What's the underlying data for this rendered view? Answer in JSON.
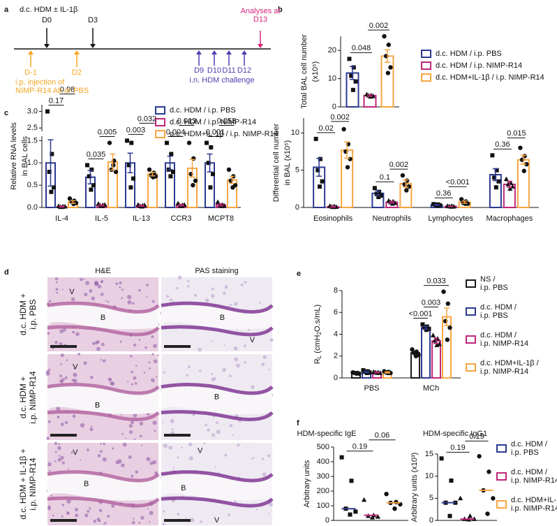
{
  "timeline": {
    "panel_label": "a",
    "sensitization": {
      "label": "d.c. HDM ± IL-1β",
      "days": [
        "D0",
        "D3"
      ],
      "color": "#111111"
    },
    "treatment": {
      "days": [
        "D-1",
        "D2"
      ],
      "label": "i.p. injection of\nNIMP-R14 Ab or PBS",
      "color": "#f5a623"
    },
    "challenge": {
      "days": [
        "D9",
        "D10",
        "D11",
        "D12"
      ],
      "label": "i.n. HDM challenge",
      "color": "#4b3fb0"
    },
    "analysis": {
      "label": "Analyses at\nD13",
      "color": "#d6237a"
    }
  },
  "histology": {
    "panel_label": "d",
    "columns": [
      "H&E",
      "PAS staining"
    ],
    "rows": [
      {
        "label": "d.c. HDM +\ni.p. PBS",
        "images": [
          [
            "V",
            "B"
          ],
          [
            "B",
            "V"
          ]
        ]
      },
      {
        "label": "d.c. HDM +\ni.p. NIMP-R14",
        "images": [
          [
            "V",
            "B"
          ],
          [
            "B"
          ]
        ]
      },
      {
        "label": "d.c. HDM + IL-1β +\ni.p. NIMP-R14",
        "images": [
          [
            "V",
            "B"
          ],
          [
            "V",
            "B",
            "V"
          ]
        ]
      }
    ]
  },
  "chart_data": [
    {
      "panel_label": "b",
      "type": "bar",
      "y_label": [
        "Total BAL cell number",
        "(x10⁵)"
      ],
      "categories": [
        null
      ],
      "ylim": [
        0,
        25
      ],
      "yticks": [
        0,
        10,
        20
      ],
      "series": [
        {
          "name": "d.c. HDM / i.p. PBS",
          "color": "#2b3990",
          "marker": "square",
          "values": [
            12
          ],
          "errors": [
            2.3
          ],
          "points": [
            [
              17,
              14,
              11,
              9,
              6
            ]
          ]
        },
        {
          "name": "d.c. HDM / i.p. NIMP-R14",
          "color": "#c0267a",
          "marker": "triangle",
          "values": [
            4
          ],
          "errors": [
            0.3
          ],
          "points": [
            [
              4.4,
              4.1,
              4,
              3.8,
              3.6
            ]
          ]
        },
        {
          "name": "d.c. HDM+IL-1β / i.p. NIMP-R14",
          "color": "#f7a541",
          "marker": "circle",
          "values": [
            18
          ],
          "errors": [
            2.2
          ],
          "points": [
            [
              25,
              22,
              18,
              14,
              12
            ]
          ]
        }
      ],
      "brackets": [
        {
          "category": 0,
          "from": 0,
          "to": 1,
          "label": "0.048"
        },
        {
          "category": 0,
          "from": 1,
          "to": 2,
          "label": "0.002"
        }
      ]
    },
    {
      "panel_label": "c",
      "type": "bar",
      "y_label": [
        "Relative RNA levels",
        "in BAL cells"
      ],
      "categories": [
        "IL-4",
        "IL-5",
        "IL-13",
        "CCR3",
        "MCPT8"
      ],
      "ylim": [
        0,
        3.2
      ],
      "axis_break": [
        1.6,
        2.4
      ],
      "yticks": [
        {
          "value": 0,
          "label": "0.0"
        },
        0.5,
        {
          "value": 1,
          "label": "1.0"
        },
        1.5,
        2.5,
        {
          "value": 3,
          "label": "3.0"
        }
      ],
      "series": [
        {
          "name": "d.c. HDM / i.p. PBS",
          "color": "#2b3990",
          "marker": "square",
          "values": [
            1.0,
            0.68,
            1.0,
            1.0,
            1.0
          ],
          "errors": [
            0.52,
            0.15,
            0.22,
            0.15,
            0.2
          ],
          "points": [
            [
              3.0,
              1.2,
              0.8,
              0.45,
              0.35
            ],
            [
              0.95,
              0.85,
              0.7,
              0.5,
              0.4
            ],
            [
              1.5,
              1.45,
              0.95,
              0.65,
              0.45
            ],
            [
              1.45,
              1.2,
              0.85,
              0.8,
              0.7
            ],
            [
              1.45,
              1.35,
              1.0,
              0.75,
              0.45
            ]
          ]
        },
        {
          "name": "d.c. HDM / i.p. NIMP-R14",
          "color": "#c0267a",
          "marker": "triangle",
          "values": [
            0.02,
            0.05,
            0.04,
            0.05,
            0.06
          ],
          "errors": [
            0.01,
            0.01,
            0.01,
            0.01,
            0.02
          ],
          "points": [
            [
              0.03,
              0.02,
              0.01,
              0.02,
              0.01
            ],
            [
              0.08,
              0.05,
              0.04,
              0.06,
              0.03
            ],
            [
              0.06,
              0.04,
              0.03,
              0.05,
              0.02
            ],
            [
              0.09,
              0.05,
              0.04,
              0.06,
              0.03
            ],
            [
              0.12,
              0.06,
              0.05,
              0.04,
              0.03
            ]
          ]
        },
        {
          "name": "d.c. HDM+IL-1β / i.p. NIMP-R14",
          "color": "#f7a541",
          "marker": "circle",
          "values": [
            0.12,
            1.02,
            0.75,
            0.88,
            0.62
          ],
          "errors": [
            0.03,
            0.18,
            0.04,
            0.2,
            0.08
          ],
          "points": [
            [
              0.2,
              0.15,
              0.12,
              0.1,
              0.08
            ],
            [
              1.45,
              1.05,
              0.85,
              0.8,
              0.95
            ],
            [
              0.85,
              0.78,
              0.72,
              0.7,
              0.68
            ],
            [
              1.45,
              1.1,
              0.75,
              0.6,
              0.5
            ],
            [
              0.85,
              0.7,
              0.6,
              0.5,
              0.45
            ]
          ]
        }
      ],
      "brackets": [
        {
          "category": 0,
          "from": 0,
          "to": 1,
          "label": "0.17"
        },
        {
          "category": 0,
          "from": 1,
          "to": 2,
          "label": "0.98"
        },
        {
          "category": 1,
          "from": 0,
          "to": 1,
          "label": "0.035"
        },
        {
          "category": 1,
          "from": 1,
          "to": 2,
          "label": "0.005"
        },
        {
          "category": 2,
          "from": 0,
          "to": 1,
          "label": "0.003"
        },
        {
          "category": 2,
          "from": 1,
          "to": 2,
          "label": "0.032"
        },
        {
          "category": 3,
          "from": 0,
          "to": 1,
          "label": "0.004"
        },
        {
          "category": 3,
          "from": 1,
          "to": 2,
          "label": "0.013"
        },
        {
          "category": 4,
          "from": 0,
          "to": 1,
          "label": "0.001"
        },
        {
          "category": 4,
          "from": 1,
          "to": 2,
          "label": "0.053"
        }
      ]
    },
    {
      "type": "bar",
      "y_label": [
        "Differential cell number",
        "in BAL (x10⁵)"
      ],
      "categories": [
        "Eosinophils",
        "Neutrophils",
        "Lymphocytes",
        "Macrophages"
      ],
      "ylim": [
        0,
        12
      ],
      "yticks": [
        0,
        5,
        10
      ],
      "series": [
        {
          "color": "#2b3990",
          "marker": "square",
          "values": [
            5.4,
            1.9,
            0.35,
            4.4
          ],
          "errors": [
            1.2,
            0.3,
            0.05,
            0.8
          ],
          "points": [
            [
              9.2,
              6.5,
              5,
              3.5,
              2.8
            ],
            [
              2.6,
              2.1,
              1.8,
              1.6,
              1.4
            ],
            [
              0.45,
              0.4,
              0.35,
              0.3,
              0.25
            ],
            [
              7,
              5,
              4,
              3.5,
              2.7
            ]
          ]
        },
        {
          "color": "#c0267a",
          "marker": "triangle",
          "values": [
            0.1,
            0.7,
            0.15,
            3.1
          ],
          "errors": [
            0.05,
            0.1,
            0.03,
            0.4
          ],
          "points": [
            [
              0.2,
              0.15,
              0.1,
              0.08,
              0.05
            ],
            [
              0.9,
              0.8,
              0.7,
              0.6,
              0.5
            ],
            [
              0.2,
              0.18,
              0.15,
              0.12,
              0.1
            ],
            [
              3.8,
              3.3,
              3.1,
              2.8,
              2.5
            ]
          ]
        },
        {
          "color": "#f7a541",
          "marker": "circle",
          "values": [
            7.7,
            3.2,
            0.7,
            6.4
          ],
          "errors": [
            1.1,
            0.5,
            0.15,
            0.6
          ],
          "points": [
            [
              10.5,
              8.5,
              7.5,
              6.5,
              5.4
            ],
            [
              4.3,
              3.6,
              3.1,
              2.8,
              2.3
            ],
            [
              1.1,
              0.8,
              0.6,
              0.5,
              0.5
            ],
            [
              8,
              6.9,
              6.4,
              5.8,
              4.9
            ]
          ]
        }
      ],
      "brackets": [
        {
          "category": 0,
          "from": 0,
          "to": 1,
          "label": "0.02"
        },
        {
          "category": 0,
          "from": 1,
          "to": 2,
          "label": "0.002"
        },
        {
          "category": 1,
          "from": 0,
          "to": 1,
          "label": "0.1"
        },
        {
          "category": 1,
          "from": 1,
          "to": 2,
          "label": "0.002"
        },
        {
          "category": 2,
          "from": 0,
          "to": 1,
          "label": "0.36"
        },
        {
          "category": 2,
          "from": 1,
          "to": 2,
          "label": "<0.001"
        },
        {
          "category": 3,
          "from": 0,
          "to": 1,
          "label": "0.36"
        },
        {
          "category": 3,
          "from": 1,
          "to": 2,
          "label": "0.015"
        }
      ]
    },
    {
      "panel_label": "e",
      "type": "bar",
      "y_label": [
        "R",
        "L",
        " (cmH",
        "2",
        "O.s/mL)"
      ],
      "categories": [
        "PBS",
        "MCh"
      ],
      "ylim": [
        0,
        8
      ],
      "yticks": [
        0,
        2,
        4,
        6,
        8
      ],
      "series": [
        {
          "name": "NS /\ni.p. PBS",
          "color": "#1a1a1a",
          "marker": "circle",
          "values": [
            0.45,
            2.3
          ],
          "errors": [
            0.03,
            0.15
          ],
          "points": [
            [
              0.5,
              0.45,
              0.45,
              0.4,
              0.4
            ],
            [
              2.6,
              2.4,
              2.3,
              2.1,
              2.0
            ]
          ]
        },
        {
          "name": "d.c. HDM /\ni.p. PBS",
          "color": "#2b3990",
          "marker": "square",
          "values": [
            0.55,
            4.6
          ],
          "errors": [
            0.05,
            0.12
          ],
          "points": [
            [
              0.7,
              0.6,
              0.55,
              0.5,
              0.45
            ],
            [
              4.9,
              4.7,
              4.6,
              4.5,
              4.4
            ]
          ]
        },
        {
          "name": "d.c. HDM /\ni.p. NIMP-R14",
          "color": "#c0267a",
          "marker": "triangle",
          "values": [
            0.5,
            3.4
          ],
          "errors": [
            0.03,
            0.25
          ],
          "points": [
            [
              0.55,
              0.5,
              0.5,
              0.45,
              0.45
            ],
            [
              3.9,
              3.6,
              3.4,
              3.1,
              3.0
            ]
          ]
        },
        {
          "name": "d.c. HDM+IL-1β /\ni.p. NIMP-R14",
          "color": "#f7a541",
          "marker": "circle",
          "values": [
            0.5,
            5.6
          ],
          "errors": [
            0.05,
            0.8
          ],
          "points": [
            [
              0.6,
              0.55,
              0.5,
              0.45,
              0.45
            ],
            [
              7.9,
              6.8,
              5.2,
              4.6,
              3.5
            ]
          ]
        }
      ],
      "brackets": [
        {
          "category": 1,
          "from": 0,
          "to": 1,
          "label": "<0.001"
        },
        {
          "category": 1,
          "from": 1,
          "to": 2,
          "label": "0.003"
        },
        {
          "category": 1,
          "from": 1,
          "to": 3,
          "label": "0.033"
        }
      ]
    },
    {
      "panel_label": "f",
      "type": "dot",
      "title": "HDM-specific IgE",
      "y_label": [
        "Arbitrary units"
      ],
      "categories": [
        null
      ],
      "ylim": [
        0,
        500
      ],
      "yticks": [
        0,
        100,
        200,
        300,
        400,
        500
      ],
      "series": [
        {
          "color": "#2b3990",
          "marker": "square",
          "values": [
            80
          ],
          "points": [
            [
              430,
              270,
              80,
              60,
              40
            ]
          ]
        },
        {
          "color": "#c0267a",
          "marker": "triangle",
          "values": [
            35
          ],
          "points": [
            [
              140,
              35,
              30,
              25,
              20
            ]
          ]
        },
        {
          "color": "#f7a541",
          "marker": "circle",
          "values": [
            120
          ],
          "points": [
            [
              180,
              125,
              120,
              110,
              80
            ]
          ]
        }
      ],
      "brackets": [
        {
          "category": 0,
          "from": 0,
          "to": 1,
          "label": "0.19"
        },
        {
          "category": 0,
          "from": 1,
          "to": 2,
          "label": "0.06"
        }
      ]
    },
    {
      "type": "dot",
      "title": "HDM-specific IgG1",
      "y_label": [
        "Arbitrary units (x10³)"
      ],
      "categories": [
        null
      ],
      "ylim": [
        0,
        15
      ],
      "yticks": [
        0,
        5,
        10,
        15
      ],
      "series": [
        {
          "name": "d.c. HDM /\ni.p. PBS",
          "color": "#2b3990",
          "marker": "square",
          "values": [
            4
          ],
          "points": [
            [
              14,
              9,
              4,
              4,
              1
            ]
          ]
        },
        {
          "name": "d.c. HDM /\ni.p. NIMP-R14",
          "color": "#c0267a",
          "marker": "triangle",
          "values": [
            0.3
          ],
          "points": [
            [
              5,
              1,
              0.3,
              0.3,
              0.2
            ]
          ]
        },
        {
          "name": "d.c. HDM+IL-1β /\ni.p. NIMP-R14",
          "color": "#f7a541",
          "marker": "circle",
          "values": [
            6.8
          ],
          "points": [
            [
              14.5,
              11,
              6.8,
              5,
              1.5
            ]
          ]
        }
      ],
      "brackets": [
        {
          "category": 0,
          "from": 0,
          "to": 1,
          "label": "0.19"
        },
        {
          "category": 0,
          "from": 1,
          "to": 2,
          "label": "0.19"
        }
      ]
    }
  ]
}
